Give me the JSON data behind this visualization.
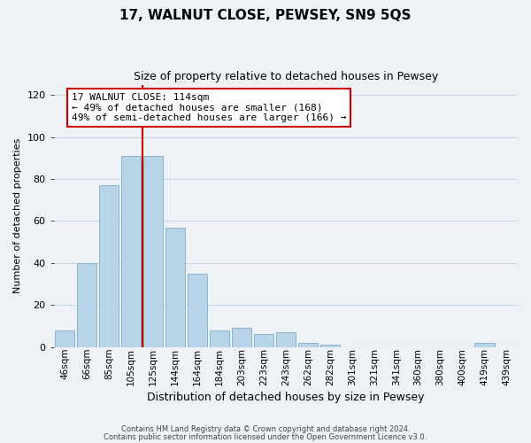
{
  "title": "17, WALNUT CLOSE, PEWSEY, SN9 5QS",
  "subtitle": "Size of property relative to detached houses in Pewsey",
  "xlabel": "Distribution of detached houses by size in Pewsey",
  "ylabel": "Number of detached properties",
  "bar_labels": [
    "46sqm",
    "66sqm",
    "85sqm",
    "105sqm",
    "125sqm",
    "144sqm",
    "164sqm",
    "184sqm",
    "203sqm",
    "223sqm",
    "243sqm",
    "262sqm",
    "282sqm",
    "301sqm",
    "321sqm",
    "341sqm",
    "360sqm",
    "380sqm",
    "400sqm",
    "419sqm",
    "439sqm"
  ],
  "bar_values": [
    8,
    40,
    77,
    91,
    91,
    57,
    35,
    8,
    9,
    6,
    7,
    2,
    1,
    0,
    0,
    0,
    0,
    0,
    0,
    2,
    0
  ],
  "bar_color": "#b8d4e8",
  "bar_edge_color": "#8ab4cc",
  "vline_color": "#cc0000",
  "annotation_text": "17 WALNUT CLOSE: 114sqm\n← 49% of detached houses are smaller (168)\n49% of semi-detached houses are larger (166) →",
  "annotation_box_color": "#ffffff",
  "annotation_box_edge": "#cc0000",
  "ylim": [
    0,
    125
  ],
  "yticks": [
    0,
    20,
    40,
    60,
    80,
    100,
    120
  ],
  "grid_color": "#c8d8e8",
  "footer_line1": "Contains HM Land Registry data © Crown copyright and database right 2024.",
  "footer_line2": "Contains public sector information licensed under the Open Government Licence v3.0.",
  "background_color": "#eef2f7",
  "title_fontsize": 11,
  "subtitle_fontsize": 9,
  "xlabel_fontsize": 9,
  "ylabel_fontsize": 8,
  "tick_fontsize": 8,
  "annot_fontsize": 8
}
